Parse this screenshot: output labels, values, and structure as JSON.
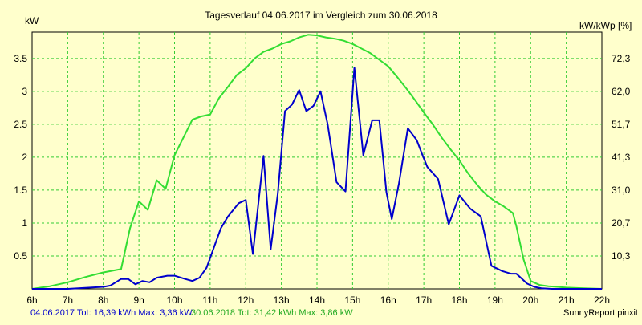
{
  "chart_data": {
    "type": "line",
    "title": "Tagesverlauf 04.06.2017 im Vergleich zum 30.06.2018",
    "ylabel_left": "kW",
    "ylabel_right": "kW/kWp [%]",
    "xlim": [
      6,
      22
    ],
    "ylim": [
      0,
      3.9
    ],
    "grid": true,
    "x_ticks": [
      "6h",
      "7h",
      "8h",
      "9h",
      "10h",
      "11h",
      "12h",
      "13h",
      "14h",
      "15h",
      "16h",
      "17h",
      "18h",
      "19h",
      "20h",
      "21h",
      "22h"
    ],
    "y_ticks_left": [
      "0.5",
      "1",
      "1.5",
      "2",
      "2.5",
      "3",
      "3.5"
    ],
    "y_tick_values_left": [
      0.5,
      1,
      1.5,
      2,
      2.5,
      3,
      3.5
    ],
    "y_ticks_right": [
      "10,3",
      "20,7",
      "31,0",
      "41,3",
      "51,7",
      "62,0",
      "72,3"
    ],
    "series": [
      {
        "name": "04.06.2017",
        "color": "#0000cc",
        "x": [
          6,
          7,
          8,
          8.2,
          8.5,
          8.7,
          8.9,
          9.1,
          9.3,
          9.5,
          9.8,
          10,
          10.3,
          10.5,
          10.7,
          10.9,
          11.1,
          11.3,
          11.5,
          11.8,
          12.0,
          12.2,
          12.5,
          12.7,
          12.9,
          13.1,
          13.3,
          13.5,
          13.7,
          13.9,
          14.1,
          14.3,
          14.55,
          14.8,
          15.05,
          15.3,
          15.55,
          15.75,
          15.95,
          16.1,
          16.3,
          16.55,
          16.8,
          16.95,
          17.1,
          17.4,
          17.7,
          18.0,
          18.3,
          18.6,
          18.9,
          19.2,
          19.45,
          19.6,
          19.9,
          20.1,
          20.3,
          20.6,
          21.0,
          21.5,
          22
        ],
        "y": [
          0.0,
          0.0,
          0.03,
          0.05,
          0.15,
          0.15,
          0.07,
          0.12,
          0.1,
          0.17,
          0.2,
          0.2,
          0.15,
          0.12,
          0.17,
          0.32,
          0.62,
          0.92,
          1.1,
          1.3,
          1.35,
          0.53,
          2.02,
          0.6,
          1.45,
          2.7,
          2.8,
          3.02,
          2.7,
          2.78,
          3.0,
          2.5,
          1.62,
          1.48,
          3.36,
          2.03,
          2.56,
          2.56,
          1.47,
          1.06,
          1.6,
          2.44,
          2.26,
          2.05,
          1.85,
          1.67,
          0.98,
          1.42,
          1.22,
          1.1,
          0.35,
          0.27,
          0.23,
          0.23,
          0.08,
          0.03,
          0.01,
          0.0,
          0.0,
          0.0,
          0.0
        ]
      },
      {
        "name": "30.06.2018",
        "color": "#33dd33",
        "x": [
          6,
          6.5,
          7,
          7.5,
          8,
          8.5,
          8.75,
          9.0,
          9.25,
          9.5,
          9.75,
          10.0,
          10.25,
          10.5,
          10.75,
          11.0,
          11.25,
          11.5,
          11.75,
          12.0,
          12.25,
          12.5,
          12.75,
          13.0,
          13.25,
          13.5,
          13.75,
          14.0,
          14.25,
          14.5,
          14.75,
          15.0,
          15.25,
          15.5,
          15.75,
          16.0,
          16.25,
          16.5,
          16.75,
          17.0,
          17.25,
          17.5,
          17.75,
          18.0,
          18.25,
          18.5,
          18.75,
          19.0,
          19.25,
          19.5,
          19.6,
          19.8,
          20.0,
          20.25,
          20.5,
          20.75,
          21.0,
          21.5,
          22
        ],
        "y": [
          0.0,
          0.04,
          0.1,
          0.18,
          0.25,
          0.3,
          0.92,
          1.33,
          1.2,
          1.65,
          1.52,
          2.03,
          2.3,
          2.57,
          2.62,
          2.65,
          2.9,
          3.07,
          3.25,
          3.35,
          3.5,
          3.6,
          3.65,
          3.72,
          3.76,
          3.82,
          3.86,
          3.85,
          3.82,
          3.8,
          3.77,
          3.72,
          3.65,
          3.58,
          3.48,
          3.38,
          3.22,
          3.05,
          2.87,
          2.68,
          2.5,
          2.3,
          2.12,
          1.95,
          1.75,
          1.58,
          1.43,
          1.33,
          1.25,
          1.15,
          0.95,
          0.45,
          0.12,
          0.06,
          0.04,
          0.03,
          0.02,
          0.01,
          0.0
        ]
      }
    ]
  },
  "footer": {
    "series1_summary": "04.06.2017 Tot: 16,39 kWh Max: 3,36 kW",
    "series2_summary": "30.06.2018 Tot: 31,42 kWh Max: 3,86 kW",
    "credit": "SunnyReport pinxit"
  },
  "colors": {
    "background": "#ffffcc",
    "plot_background": "#ffffcc",
    "grid": "#33cc33",
    "axis": "#000000"
  }
}
